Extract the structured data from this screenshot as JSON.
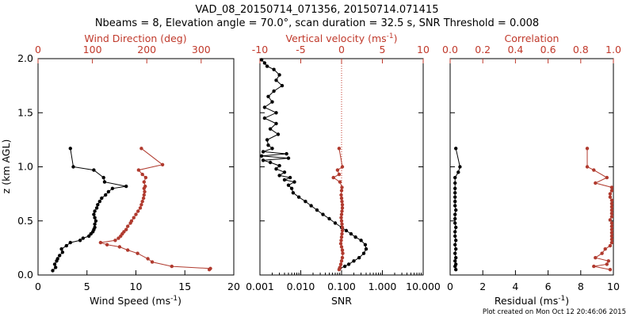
{
  "title_line1": "VAD_08_20150714_071356, 20150714.071415",
  "title_line2": "Nbeams = 8, Elevation angle = 70.0°, scan duration = 32.5 s, SNR Threshold = 0.008",
  "footer": "Plot created on Mon Oct 12 20:46:06 2015",
  "colors": {
    "black_series": "#000000",
    "red_series": "#b03a2e",
    "red_axis": "#c0392b"
  },
  "chart_data": [
    {
      "type": "scatter",
      "panel": "wind",
      "ylabel": "z (km AGL)",
      "ylim": [
        0,
        2.0
      ],
      "yticks": [
        "0.0",
        "0.5",
        "1.0",
        "1.5",
        "2.0"
      ],
      "bottom_axis": {
        "label": "Wind Speed (ms",
        "label_sup": "-1",
        "label_end": ")",
        "lim": [
          0,
          20
        ],
        "ticks": [
          "0",
          "5",
          "10",
          "15",
          "20"
        ]
      },
      "top_axis": {
        "label": "Wind Direction (deg)",
        "lim": [
          0,
          360
        ],
        "ticks": [
          "0",
          "100",
          "200",
          "300"
        ]
      },
      "series": [
        {
          "axis": "bottom",
          "color": "black",
          "z": [
            0.04,
            0.07,
            0.1,
            0.13,
            0.15,
            0.18,
            0.21,
            0.24,
            0.27,
            0.3,
            0.32,
            0.34,
            0.36,
            0.38,
            0.4,
            0.42,
            0.44,
            0.47,
            0.5,
            0.53,
            0.56,
            0.59,
            0.62,
            0.65,
            0.68,
            0.71,
            0.74,
            0.77,
            0.8,
            0.82,
            0.86,
            0.9,
            0.97,
            1.0,
            1.17
          ],
          "values": [
            1.5,
            1.8,
            1.7,
            1.9,
            2.0,
            2.2,
            2.5,
            2.4,
            2.9,
            3.3,
            4.3,
            4.6,
            5.2,
            5.4,
            5.6,
            5.7,
            5.8,
            5.8,
            5.9,
            5.8,
            5.7,
            5.8,
            6.0,
            6.1,
            6.3,
            6.5,
            6.9,
            7.2,
            7.6,
            9.0,
            6.8,
            6.7,
            5.7,
            3.6,
            3.3
          ]
        },
        {
          "axis": "top",
          "color": "red",
          "z": [
            0.05,
            0.06,
            0.08,
            0.12,
            0.15,
            0.2,
            0.23,
            0.26,
            0.28,
            0.3,
            0.32,
            0.34,
            0.36,
            0.38,
            0.4,
            0.42,
            0.45,
            0.48,
            0.5,
            0.53,
            0.56,
            0.59,
            0.62,
            0.65,
            0.68,
            0.71,
            0.74,
            0.77,
            0.8,
            0.82,
            0.86,
            0.9,
            0.93,
            0.97,
            1.02,
            1.17
          ],
          "values": [
            315,
            317,
            246,
            210,
            202,
            183,
            165,
            150,
            127,
            115,
            142,
            148,
            152,
            155,
            158,
            162,
            165,
            170,
            172,
            176,
            180,
            184,
            188,
            190,
            192,
            194,
            195,
            196,
            195,
            197,
            195,
            198,
            192,
            185,
            229,
            190
          ]
        }
      ]
    },
    {
      "type": "scatter",
      "panel": "snr",
      "ylim": [
        0,
        2.0
      ],
      "bottom_axis": {
        "label": "SNR",
        "scale": "log",
        "lim": [
          0.001,
          10
        ],
        "ticks": [
          "0.001",
          "0.010",
          "0.100",
          "1.000",
          "10.000"
        ]
      },
      "top_axis": {
        "label": "Vertical velocity (ms",
        "label_sup": "-1",
        "label_end": ")",
        "lim": [
          -10,
          10
        ],
        "ticks": [
          "-10",
          "-5",
          "0",
          "5",
          "10"
        ]
      },
      "series": [
        {
          "axis": "bottom",
          "color": "black",
          "scale": "log",
          "z": [
            0.06,
            0.08,
            0.1,
            0.13,
            0.16,
            0.2,
            0.24,
            0.28,
            0.32,
            0.35,
            0.38,
            0.41,
            0.44,
            0.48,
            0.52,
            0.56,
            0.6,
            0.64,
            0.68,
            0.72,
            0.76,
            0.8,
            0.83,
            0.86,
            0.88,
            0.9,
            0.92,
            0.95,
            0.98,
            1.01,
            1.04,
            1.06,
            1.08,
            1.1,
            1.12,
            1.14,
            1.17,
            1.2,
            1.25,
            1.3,
            1.35,
            1.4,
            1.45,
            1.5,
            1.55,
            1.6,
            1.65,
            1.7,
            1.75,
            1.8,
            1.85,
            1.9,
            1.93,
            1.96,
            1.99
          ],
          "values": [
            0.09,
            0.12,
            0.15,
            0.2,
            0.27,
            0.35,
            0.4,
            0.38,
            0.3,
            0.22,
            0.17,
            0.13,
            0.1,
            0.07,
            0.05,
            0.035,
            0.025,
            0.018,
            0.013,
            0.009,
            0.0065,
            0.006,
            0.005,
            0.007,
            0.004,
            0.0055,
            0.003,
            0.004,
            0.0025,
            0.003,
            0.0018,
            0.0012,
            0.005,
            0.0011,
            0.0045,
            0.0012,
            0.002,
            0.0016,
            0.0015,
            0.0028,
            0.0018,
            0.0025,
            0.0013,
            0.0025,
            0.0013,
            0.002,
            0.0016,
            0.0022,
            0.0035,
            0.0025,
            0.003,
            0.0022,
            0.0015,
            0.0013,
            0.0011
          ]
        },
        {
          "axis": "top",
          "color": "red",
          "z": [
            0.05,
            0.07,
            0.1,
            0.13,
            0.16,
            0.2,
            0.23,
            0.26,
            0.29,
            0.32,
            0.35,
            0.38,
            0.41,
            0.44,
            0.47,
            0.5,
            0.53,
            0.56,
            0.59,
            0.62,
            0.65,
            0.68,
            0.71,
            0.74,
            0.78,
            0.81,
            0.86,
            0.9,
            0.93,
            0.97,
            1.0,
            1.17
          ],
          "values": [
            -0.3,
            -0.2,
            -0.1,
            0,
            0.1,
            0.15,
            0.1,
            0.0,
            -0.1,
            -0.05,
            0.0,
            0.05,
            0.1,
            0.1,
            0.05,
            0.0,
            -0.05,
            0,
            0.05,
            0.1,
            0.1,
            0.05,
            0.0,
            -0.05,
            0.0,
            0.05,
            -0.2,
            -1.0,
            -0.3,
            -0.5,
            0.1,
            -0.3
          ]
        }
      ]
    },
    {
      "type": "scatter",
      "panel": "residual",
      "ylim": [
        0,
        2.0
      ],
      "bottom_axis": {
        "label": "Residual (ms",
        "label_sup": "-1",
        "label_end": ")",
        "lim": [
          0,
          10
        ],
        "ticks": [
          "0",
          "2",
          "4",
          "6",
          "8",
          "10"
        ]
      },
      "top_axis": {
        "label": "Correlation",
        "lim": [
          0,
          1.0
        ],
        "ticks": [
          "0.0",
          "0.2",
          "0.4",
          "0.6",
          "0.8",
          "1.0"
        ]
      },
      "series": [
        {
          "axis": "bottom",
          "color": "black",
          "z": [
            0.05,
            0.08,
            0.1,
            0.13,
            0.16,
            0.2,
            0.24,
            0.28,
            0.32,
            0.36,
            0.4,
            0.44,
            0.48,
            0.52,
            0.56,
            0.6,
            0.64,
            0.68,
            0.72,
            0.76,
            0.8,
            0.85,
            0.9,
            0.95,
            1.0,
            1.17
          ],
          "values": [
            0.35,
            0.3,
            0.35,
            0.3,
            0.35,
            0.3,
            0.35,
            0.3,
            0.35,
            0.3,
            0.3,
            0.35,
            0.3,
            0.3,
            0.3,
            0.35,
            0.3,
            0.3,
            0.3,
            0.3,
            0.3,
            0.3,
            0.3,
            0.5,
            0.6,
            0.35
          ]
        },
        {
          "axis": "top",
          "color": "red",
          "z": [
            0.05,
            0.08,
            0.1,
            0.13,
            0.16,
            0.2,
            0.24,
            0.27,
            0.3,
            0.33,
            0.36,
            0.39,
            0.42,
            0.45,
            0.48,
            0.51,
            0.54,
            0.57,
            0.6,
            0.63,
            0.66,
            0.69,
            0.72,
            0.75,
            0.78,
            0.81,
            0.85,
            0.9,
            0.97,
            1.0,
            1.17
          ],
          "values": [
            0.98,
            0.88,
            0.96,
            0.97,
            0.89,
            0.93,
            0.95,
            0.98,
            0.99,
            0.99,
            0.99,
            0.99,
            0.99,
            0.99,
            0.99,
            0.98,
            0.99,
            0.99,
            0.99,
            0.99,
            0.99,
            0.99,
            0.98,
            0.98,
            0.99,
            0.99,
            0.89,
            0.96,
            0.88,
            0.84,
            0.84
          ]
        }
      ]
    }
  ]
}
